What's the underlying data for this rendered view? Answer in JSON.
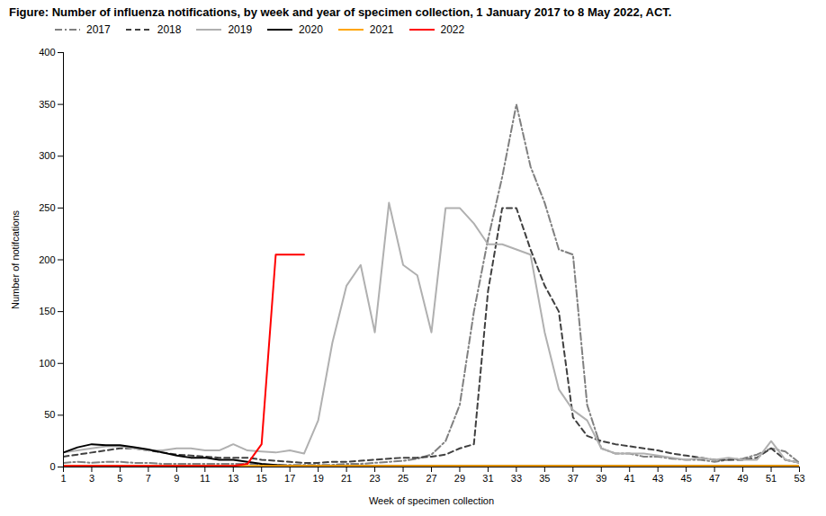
{
  "chart_data": {
    "type": "line",
    "title": "Figure: Number of influenza notifications, by week and year of specimen collection, 1 January 2017 to 8 May 2022, ACT.",
    "xlabel": "Week of specimen collection",
    "ylabel": "Number of notifcations",
    "xlim": [
      1,
      53
    ],
    "ylim": [
      0,
      400
    ],
    "xticks": [
      1,
      3,
      5,
      7,
      9,
      11,
      13,
      15,
      17,
      19,
      21,
      23,
      25,
      27,
      29,
      31,
      33,
      35,
      37,
      39,
      41,
      43,
      45,
      47,
      49,
      51,
      53
    ],
    "yticks": [
      0,
      50,
      100,
      150,
      200,
      250,
      300,
      350,
      400
    ],
    "grid": false,
    "legend": "upper left",
    "x": [
      1,
      2,
      3,
      4,
      5,
      6,
      7,
      8,
      9,
      10,
      11,
      12,
      13,
      14,
      15,
      16,
      17,
      18,
      19,
      20,
      21,
      22,
      23,
      24,
      25,
      26,
      27,
      28,
      29,
      30,
      31,
      32,
      33,
      34,
      35,
      36,
      37,
      38,
      39,
      40,
      41,
      42,
      43,
      44,
      45,
      46,
      47,
      48,
      49,
      50,
      51,
      52,
      53
    ],
    "series": [
      {
        "name": "2017",
        "color": "#808080",
        "line_style": "dashdot",
        "values": [
          4,
          5,
          4,
          5,
          5,
          4,
          4,
          3,
          3,
          3,
          3,
          3,
          3,
          3,
          2,
          2,
          2,
          2,
          2,
          2,
          3,
          3,
          4,
          5,
          6,
          8,
          12,
          25,
          60,
          150,
          220,
          280,
          350,
          290,
          255,
          210,
          205,
          60,
          18,
          13,
          13,
          10,
          10,
          8,
          7,
          7,
          5,
          7,
          8,
          12,
          18,
          15,
          4
        ]
      },
      {
        "name": "2018",
        "color": "#404040",
        "line_style": "dashed",
        "values": [
          10,
          12,
          14,
          16,
          18,
          18,
          16,
          14,
          12,
          11,
          10,
          9,
          9,
          9,
          7,
          6,
          5,
          4,
          4,
          5,
          5,
          6,
          7,
          8,
          9,
          9,
          10,
          12,
          18,
          22,
          170,
          250,
          250,
          210,
          175,
          150,
          48,
          30,
          25,
          22,
          20,
          18,
          16,
          13,
          11,
          9,
          7,
          7,
          7,
          9,
          18,
          7,
          4
        ]
      },
      {
        "name": "2019",
        "color": "#b0b0b0",
        "line_style": "solid",
        "values": [
          14,
          16,
          18,
          20,
          20,
          18,
          16,
          16,
          18,
          18,
          16,
          16,
          22,
          16,
          15,
          14,
          16,
          13,
          45,
          120,
          175,
          195,
          130,
          255,
          195,
          185,
          130,
          250,
          250,
          235,
          215,
          215,
          210,
          205,
          130,
          75,
          55,
          45,
          18,
          13,
          13,
          13,
          11,
          9,
          7,
          9,
          7,
          9,
          7,
          7,
          25,
          7,
          4
        ]
      },
      {
        "name": "2020",
        "color": "#000000",
        "line_style": "solid",
        "values": [
          14,
          19,
          22,
          21,
          21,
          19,
          17,
          14,
          11,
          9,
          9,
          7,
          7,
          5,
          3,
          2,
          1,
          1,
          1,
          1,
          1,
          1,
          1,
          1,
          1,
          1,
          1,
          1,
          1,
          1,
          1,
          1,
          1,
          1,
          1,
          1,
          1,
          1,
          1,
          1,
          1,
          1,
          1,
          1,
          1,
          1,
          1,
          1,
          1,
          1,
          1,
          1,
          1
        ]
      },
      {
        "name": "2021",
        "color": "#FFA500",
        "line_style": "solid",
        "values": [
          1,
          1,
          1,
          1,
          1,
          1,
          1,
          1,
          1,
          1,
          1,
          1,
          1,
          1,
          1,
          1,
          1,
          1,
          1,
          1,
          1,
          1,
          1,
          1,
          1,
          1,
          1,
          1,
          1,
          1,
          1,
          1,
          1,
          1,
          1,
          1,
          1,
          1,
          1,
          1,
          1,
          1,
          1,
          1,
          1,
          1,
          1,
          1,
          1,
          1,
          1,
          1,
          1
        ]
      },
      {
        "name": "2022",
        "color": "#FF0000",
        "line_style": "solid",
        "values": [
          1,
          1,
          1,
          1,
          1,
          1,
          1,
          1,
          1,
          1,
          1,
          1,
          1,
          3,
          22,
          205,
          205,
          205,
          null,
          null,
          null,
          null,
          null,
          null,
          null,
          null,
          null,
          null,
          null,
          null,
          null,
          null,
          null,
          null,
          null,
          null,
          null,
          null,
          null,
          null,
          null,
          null,
          null,
          null,
          null,
          null,
          null,
          null,
          null,
          null,
          null,
          null,
          null
        ]
      }
    ]
  }
}
